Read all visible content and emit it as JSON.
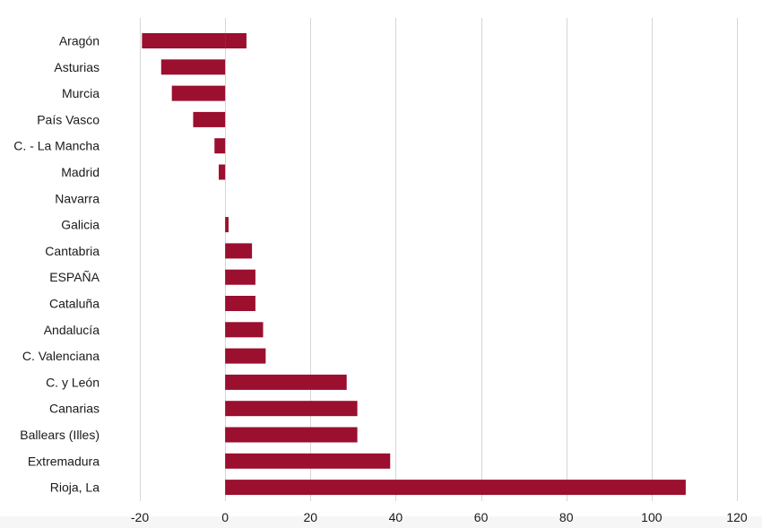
{
  "chart_data": {
    "type": "bar",
    "orientation": "horizontal",
    "categories": [
      "Aragón",
      "Asturias",
      "Murcia",
      "País Vasco",
      "C. - La Mancha",
      "Madrid",
      "Navarra",
      "Galicia",
      "Cantabria",
      "ESPAÑA",
      "Cataluña",
      "Andalucía",
      "C. Valenciana",
      "C. y León",
      "Canarias",
      "Ballears (Illes)",
      "Extremadura",
      "Rioja, La"
    ],
    "series": [
      {
        "values": [
          5.0,
          -15.0,
          -12.5,
          -7.5,
          -2.5,
          -1.5,
          0,
          0.8,
          6.3,
          7.1,
          7.1,
          8.9,
          9.5,
          28.5,
          31.0,
          31.0,
          38.7,
          108.0
        ]
      }
    ],
    "extra_segments": [
      {
        "category": "Aragón",
        "value": -19.5
      }
    ],
    "xlim": [
      -20,
      120
    ],
    "xticks": [
      -20,
      0,
      20,
      40,
      60,
      80,
      100,
      120
    ],
    "grid": "vertical",
    "bar_color": "#9b0f2f",
    "title": "",
    "xlabel": "",
    "ylabel": ""
  }
}
